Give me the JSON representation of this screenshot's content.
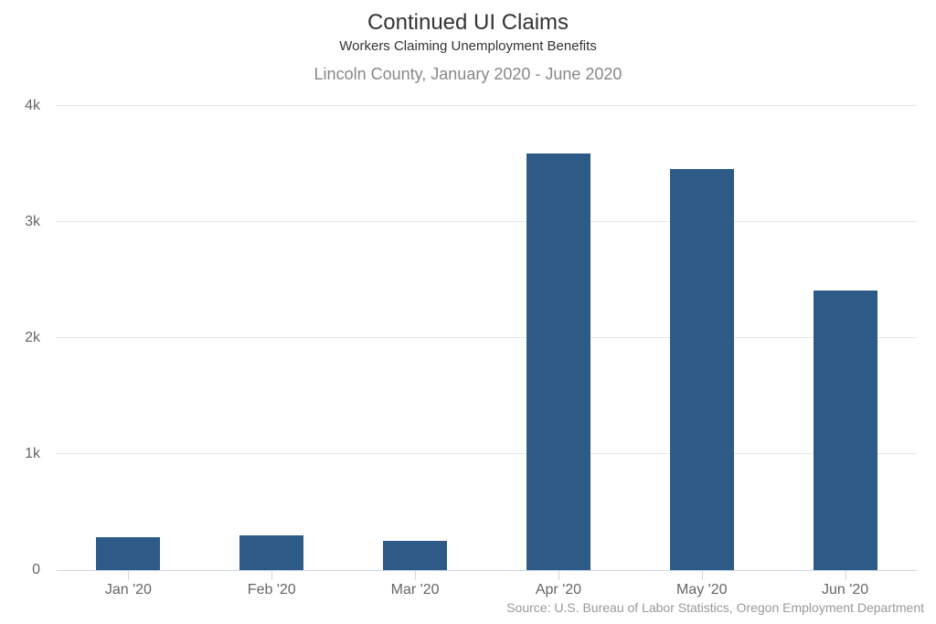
{
  "title": "Continued UI Claims",
  "subtitle": "Workers Claiming Unemployment Benefits",
  "caption": "Lincoln County, January 2020 - June 2020",
  "source": "Source: U.S. Bureau of Labor Statistics, Oregon Employment Department",
  "colors": {
    "bar": "#2d5a87",
    "grid": "#e6e6e6",
    "axis": "#ccd6eb",
    "title": "#333333",
    "subtitle": "#333333",
    "caption": "#888888",
    "label": "#666666",
    "source": "#999999"
  },
  "chart_data": {
    "type": "bar",
    "title": "Continued UI Claims",
    "subtitle": "Workers Claiming Unemployment Benefits",
    "caption": "Lincoln County, January 2020 - June 2020",
    "categories": [
      "Jan '20",
      "Feb '20",
      "Mar '20",
      "Apr '20",
      "May '20",
      "Jun '20"
    ],
    "values": [
      280,
      300,
      255,
      3590,
      3460,
      2410
    ],
    "xlabel": "",
    "ylabel": "",
    "ylim": [
      0,
      4000
    ],
    "yticks": [
      {
        "value": 0,
        "label": "0"
      },
      {
        "value": 1000,
        "label": "1k"
      },
      {
        "value": 2000,
        "label": "2k"
      },
      {
        "value": 3000,
        "label": "3k"
      },
      {
        "value": 4000,
        "label": "4k"
      }
    ],
    "grid": true,
    "legend": false
  }
}
